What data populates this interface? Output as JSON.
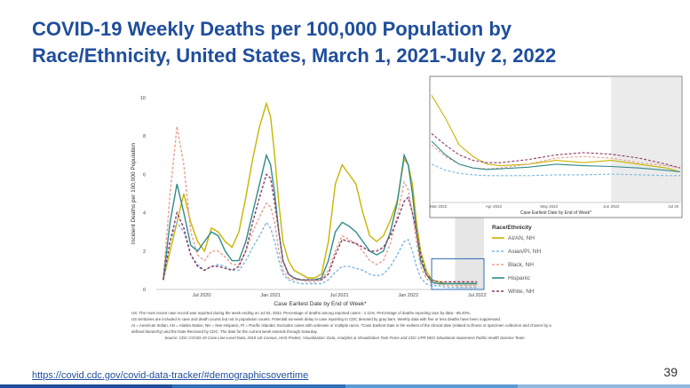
{
  "slide": {
    "title": "COVID-19 Weekly Deaths per 100,000 Population by Race/Ethnicity, United States, March 1, 2021-July 2, 2022",
    "page_number": "39",
    "link_text": "https://covid.cdc.gov/covid-data-tracker/#demographicsovertime",
    "notes": [
      "US: The most recent case record was reported during the week ending on Jul 02, 2022. Percentage of deaths among reported cases - 1.11%. Percentage of deaths reporting race by data - 85.40%.",
      "US territories are included in case and death counts but not in population counts. Potential six-week delay in case reporting to CDC denoted by gray bars. Weekly data with five or less deaths have been suppressed.",
      "AI = American Indian, AN = Alaska Native, NH = Non-Hispanic, PI = Pacific Islander. Excludes cases with unknown or multiple races. *Case Earliest Date is the earliest of the clinical date (related to illness or specimen collection and chosen by a defined hierarchy) and the Date Received by CDC. The date for the current week extends through Saturday."
    ],
    "source": "Source: CDC COVID-19 Case Line-Level Data, 2019 US Census, HHS Protect, Visualization: Data, Analytics & Visualization Task Force and CDC CPR DEO Situational Awareness Public Health Science Team",
    "bottom_bar_colors": [
      "#1f4e9c",
      "#2f6fb5",
      "#5b9bd5",
      "#8fb8e0"
    ]
  },
  "chart_data": {
    "type": "line",
    "ylabel": "Incident Deaths per 100,000 Population",
    "xlabel": "Case Earliest Date by End of Week*",
    "ylim": [
      0,
      10
    ],
    "y_ticks": [
      "0",
      "2",
      "4",
      "6",
      "8",
      "10"
    ],
    "x_ticks": [
      "Jul 2020",
      "Jan 2021",
      "Jul 2021",
      "Jan 2022",
      "Jul 2022"
    ],
    "x_range": [
      "2020-03",
      "2022-07"
    ],
    "legend_title": "Race/Ethnicity",
    "legend_position": "right",
    "series": [
      {
        "name": "AI/AN, NH",
        "color": "#c8b400",
        "dash": "solid",
        "x": [
          2020.22,
          2020.27,
          2020.32,
          2020.37,
          2020.42,
          2020.47,
          2020.52,
          2020.57,
          2020.62,
          2020.67,
          2020.72,
          2020.77,
          2020.82,
          2020.87,
          2020.92,
          2020.97,
          2021.0,
          2021.03,
          2021.06,
          2021.09,
          2021.13,
          2021.17,
          2021.22,
          2021.27,
          2021.32,
          2021.37,
          2021.42,
          2021.47,
          2021.52,
          2021.57,
          2021.62,
          2021.67,
          2021.72,
          2021.77,
          2021.82,
          2021.87,
          2021.92,
          2021.97,
          2022.0,
          2022.03,
          2022.06,
          2022.09,
          2022.13,
          2022.17,
          2022.22,
          2022.27,
          2022.32,
          2022.37,
          2022.42,
          2022.47,
          2022.5
        ],
        "y": [
          0.5,
          2.0,
          3.5,
          5.0,
          3.5,
          2.5,
          2.0,
          3.2,
          3.0,
          2.5,
          2.2,
          3.0,
          4.8,
          6.8,
          8.5,
          9.7,
          9.0,
          7.0,
          4.5,
          2.5,
          1.5,
          1.0,
          0.8,
          0.6,
          0.6,
          0.8,
          2.5,
          5.5,
          6.5,
          6.0,
          5.5,
          4.0,
          2.8,
          2.5,
          2.8,
          3.6,
          4.6,
          6.8,
          6.5,
          5.5,
          3.5,
          2.0,
          1.0,
          0.5,
          0.4,
          0.3,
          0.3,
          0.3,
          0.3,
          0.3,
          0.3
        ]
      },
      {
        "name": "Asian/PI, NH",
        "color": "#7fb8df",
        "dash": "dashed",
        "x": [
          2020.22,
          2020.27,
          2020.32,
          2020.37,
          2020.42,
          2020.47,
          2020.52,
          2020.57,
          2020.62,
          2020.67,
          2020.72,
          2020.77,
          2020.82,
          2020.87,
          2020.92,
          2020.97,
          2021.0,
          2021.03,
          2021.06,
          2021.09,
          2021.13,
          2021.17,
          2021.22,
          2021.27,
          2021.32,
          2021.37,
          2021.42,
          2021.47,
          2021.52,
          2021.57,
          2021.62,
          2021.67,
          2021.72,
          2021.77,
          2021.82,
          2021.87,
          2021.92,
          2021.97,
          2022.0,
          2022.03,
          2022.06,
          2022.09,
          2022.13,
          2022.17,
          2022.22,
          2022.27,
          2022.32,
          2022.37,
          2022.42,
          2022.47,
          2022.5
        ],
        "y": [
          0.5,
          2.5,
          3.5,
          3.0,
          1.8,
          1.3,
          1.0,
          1.2,
          1.3,
          1.2,
          1.0,
          1.0,
          1.5,
          2.2,
          2.8,
          3.5,
          3.2,
          2.5,
          1.5,
          0.8,
          0.5,
          0.4,
          0.3,
          0.3,
          0.3,
          0.3,
          0.5,
          0.9,
          1.2,
          1.2,
          1.1,
          1.0,
          0.8,
          0.7,
          0.8,
          1.2,
          1.8,
          2.5,
          2.6,
          2.0,
          1.2,
          0.6,
          0.3,
          0.2,
          0.2,
          0.1,
          0.1,
          0.1,
          0.1,
          0.1,
          0.1
        ]
      },
      {
        "name": "Black, NH",
        "color": "#e8a090",
        "dash": "dashed",
        "x": [
          2020.22,
          2020.27,
          2020.32,
          2020.37,
          2020.42,
          2020.47,
          2020.52,
          2020.57,
          2020.62,
          2020.67,
          2020.72,
          2020.77,
          2020.82,
          2020.87,
          2020.92,
          2020.97,
          2021.0,
          2021.03,
          2021.06,
          2021.09,
          2021.13,
          2021.17,
          2021.22,
          2021.27,
          2021.32,
          2021.37,
          2021.42,
          2021.47,
          2021.52,
          2021.57,
          2021.62,
          2021.67,
          2021.72,
          2021.77,
          2021.82,
          2021.87,
          2021.92,
          2021.97,
          2022.0,
          2022.03,
          2022.06,
          2022.09,
          2022.13,
          2022.17,
          2022.22,
          2022.27,
          2022.32,
          2022.37,
          2022.42,
          2022.47,
          2022.5
        ],
        "y": [
          0.5,
          5.0,
          8.5,
          6.5,
          3.0,
          1.8,
          1.5,
          2.0,
          2.0,
          1.7,
          1.3,
          1.3,
          2.0,
          3.0,
          3.8,
          4.5,
          4.3,
          3.5,
          2.0,
          1.0,
          0.6,
          0.5,
          0.5,
          0.4,
          0.4,
          0.5,
          1.0,
          2.0,
          2.8,
          2.6,
          2.4,
          2.0,
          1.5,
          1.3,
          1.5,
          2.4,
          3.8,
          5.6,
          5.2,
          4.0,
          2.5,
          1.2,
          0.6,
          0.3,
          0.3,
          0.2,
          0.2,
          0.2,
          0.2,
          0.2,
          0.2
        ]
      },
      {
        "name": "Hispanic",
        "color": "#2e8b8b",
        "dash": "solid",
        "x": [
          2020.22,
          2020.27,
          2020.32,
          2020.37,
          2020.42,
          2020.47,
          2020.52,
          2020.57,
          2020.62,
          2020.67,
          2020.72,
          2020.77,
          2020.82,
          2020.87,
          2020.92,
          2020.97,
          2021.0,
          2021.03,
          2021.06,
          2021.09,
          2021.13,
          2021.17,
          2021.22,
          2021.27,
          2021.32,
          2021.37,
          2021.42,
          2021.47,
          2021.52,
          2021.57,
          2021.62,
          2021.67,
          2021.72,
          2021.77,
          2021.82,
          2021.87,
          2021.92,
          2021.97,
          2022.0,
          2022.03,
          2022.06,
          2022.09,
          2022.13,
          2022.17,
          2022.22,
          2022.27,
          2022.32,
          2022.37,
          2022.42,
          2022.47,
          2022.5
        ],
        "y": [
          0.5,
          3.5,
          5.5,
          4.0,
          2.3,
          2.0,
          2.5,
          3.0,
          2.8,
          2.0,
          1.5,
          1.5,
          2.5,
          4.0,
          5.5,
          7.0,
          6.5,
          5.0,
          3.0,
          1.5,
          0.8,
          0.6,
          0.5,
          0.5,
          0.5,
          0.6,
          1.5,
          3.0,
          3.5,
          3.3,
          3.0,
          2.5,
          2.0,
          1.8,
          2.0,
          3.0,
          4.5,
          7.0,
          6.5,
          5.0,
          3.0,
          1.5,
          0.8,
          0.4,
          0.3,
          0.3,
          0.3,
          0.3,
          0.3,
          0.3,
          0.3
        ]
      },
      {
        "name": "White, NH",
        "color": "#8b3a62",
        "dash": "dashed",
        "x": [
          2020.22,
          2020.27,
          2020.32,
          2020.37,
          2020.42,
          2020.47,
          2020.52,
          2020.57,
          2020.62,
          2020.67,
          2020.72,
          2020.77,
          2020.82,
          2020.87,
          2020.92,
          2020.97,
          2021.0,
          2021.03,
          2021.06,
          2021.09,
          2021.13,
          2021.17,
          2021.22,
          2021.27,
          2021.32,
          2021.37,
          2021.42,
          2021.47,
          2021.52,
          2021.57,
          2021.62,
          2021.67,
          2021.72,
          2021.77,
          2021.82,
          2021.87,
          2021.92,
          2021.97,
          2022.0,
          2022.03,
          2022.06,
          2022.09,
          2022.13,
          2022.17,
          2022.22,
          2022.27,
          2022.32,
          2022.37,
          2022.42,
          2022.47,
          2022.5
        ],
        "y": [
          0.5,
          2.5,
          4.0,
          3.2,
          1.8,
          1.2,
          1.0,
          1.2,
          1.2,
          1.1,
          1.0,
          1.2,
          2.0,
          3.5,
          4.8,
          6.0,
          5.8,
          4.5,
          3.0,
          1.5,
          0.8,
          0.6,
          0.5,
          0.5,
          0.5,
          0.5,
          0.8,
          1.8,
          2.6,
          2.5,
          2.4,
          2.2,
          2.0,
          2.0,
          2.2,
          2.8,
          3.6,
          4.6,
          4.8,
          4.0,
          3.0,
          1.8,
          0.8,
          0.5,
          0.4,
          0.4,
          0.4,
          0.4,
          0.4,
          0.4,
          0.4
        ]
      }
    ],
    "inset": {
      "xlabel": "Case Earliest Date by End of Week*",
      "x_ticks": [
        "Mar 2022",
        "Apr 2022",
        "May 2022",
        "Jun 2022",
        "Jul 20"
      ],
      "x_range": [
        2022.16,
        2022.52
      ],
      "ylim": [
        0,
        1.6
      ],
      "series": [
        {
          "name": "AI/AN, NH",
          "x": [
            2022.16,
            2022.18,
            2022.2,
            2022.22,
            2022.24,
            2022.26,
            2022.3,
            2022.34,
            2022.38,
            2022.42,
            2022.46,
            2022.5,
            2022.52
          ],
          "y": [
            1.4,
            1.1,
            0.75,
            0.6,
            0.5,
            0.48,
            0.5,
            0.55,
            0.52,
            0.55,
            0.5,
            0.45,
            0.4
          ]
        },
        {
          "name": "Asian/PI, NH",
          "x": [
            2022.16,
            2022.18,
            2022.2,
            2022.22,
            2022.24,
            2022.26,
            2022.3,
            2022.34,
            2022.38,
            2022.42,
            2022.46,
            2022.5,
            2022.52
          ],
          "y": [
            0.5,
            0.42,
            0.38,
            0.36,
            0.35,
            0.35,
            0.35,
            0.36,
            0.36,
            0.37,
            0.36,
            0.35,
            0.35
          ]
        },
        {
          "name": "Black, NH",
          "x": [
            2022.16,
            2022.18,
            2022.2,
            2022.22,
            2022.24,
            2022.26,
            2022.3,
            2022.34,
            2022.38,
            2022.42,
            2022.46,
            2022.5,
            2022.52
          ],
          "y": [
            0.75,
            0.6,
            0.5,
            0.45,
            0.44,
            0.45,
            0.5,
            0.58,
            0.6,
            0.58,
            0.52,
            0.48,
            0.45
          ]
        },
        {
          "name": "Hispanic",
          "x": [
            2022.16,
            2022.18,
            2022.2,
            2022.22,
            2022.24,
            2022.26,
            2022.3,
            2022.34,
            2022.38,
            2022.42,
            2022.46,
            2022.5,
            2022.52
          ],
          "y": [
            0.8,
            0.62,
            0.5,
            0.45,
            0.43,
            0.44,
            0.46,
            0.5,
            0.48,
            0.47,
            0.45,
            0.42,
            0.4
          ]
        },
        {
          "name": "White, NH",
          "x": [
            2022.16,
            2022.18,
            2022.2,
            2022.22,
            2022.24,
            2022.26,
            2022.3,
            2022.34,
            2022.38,
            2022.42,
            2022.46,
            2022.5,
            2022.52
          ],
          "y": [
            0.9,
            0.75,
            0.62,
            0.55,
            0.52,
            0.52,
            0.56,
            0.62,
            0.65,
            0.63,
            0.58,
            0.5,
            0.45
          ]
        }
      ]
    }
  }
}
